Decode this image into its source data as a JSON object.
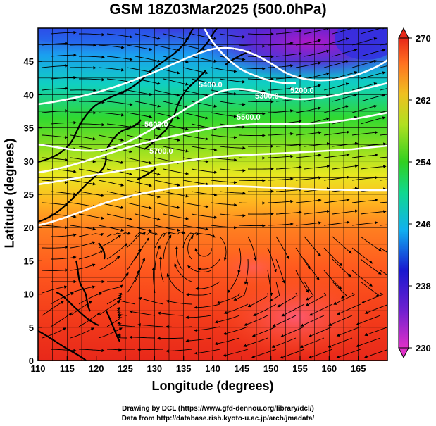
{
  "title": "GSM 18Z03Mar2025 (500.0hPa)",
  "axes": {
    "xlabel": "Longitude (degrees)",
    "ylabel": "Latitude  (degrees)",
    "x_ticks": [
      "110",
      "115",
      "120",
      "125",
      "130",
      "135",
      "140",
      "145",
      "150",
      "155",
      "160",
      "165"
    ],
    "y_ticks": [
      "0",
      "5",
      "10",
      "15",
      "20",
      "25",
      "30",
      "35",
      "40",
      "45"
    ],
    "xlim": [
      110,
      170
    ],
    "ylim": [
      0,
      50
    ]
  },
  "colorbar": {
    "labels": [
      "230",
      "238",
      "246",
      "254",
      "262",
      "270"
    ],
    "range": [
      230,
      270
    ],
    "extend": "both"
  },
  "contours": {
    "labels": [
      "5200.0",
      "5300.0",
      "5400.0",
      "5500.0",
      "5600.0",
      "5700.0"
    ],
    "color": "#ffffff"
  },
  "credits": {
    "line1": "Drawing by DCL (https://www.gfd-dennou.org/library/dcl/)",
    "line2": "Data from http://database.rish.kyoto-u.ac.jp/arch/jmadata/"
  }
}
